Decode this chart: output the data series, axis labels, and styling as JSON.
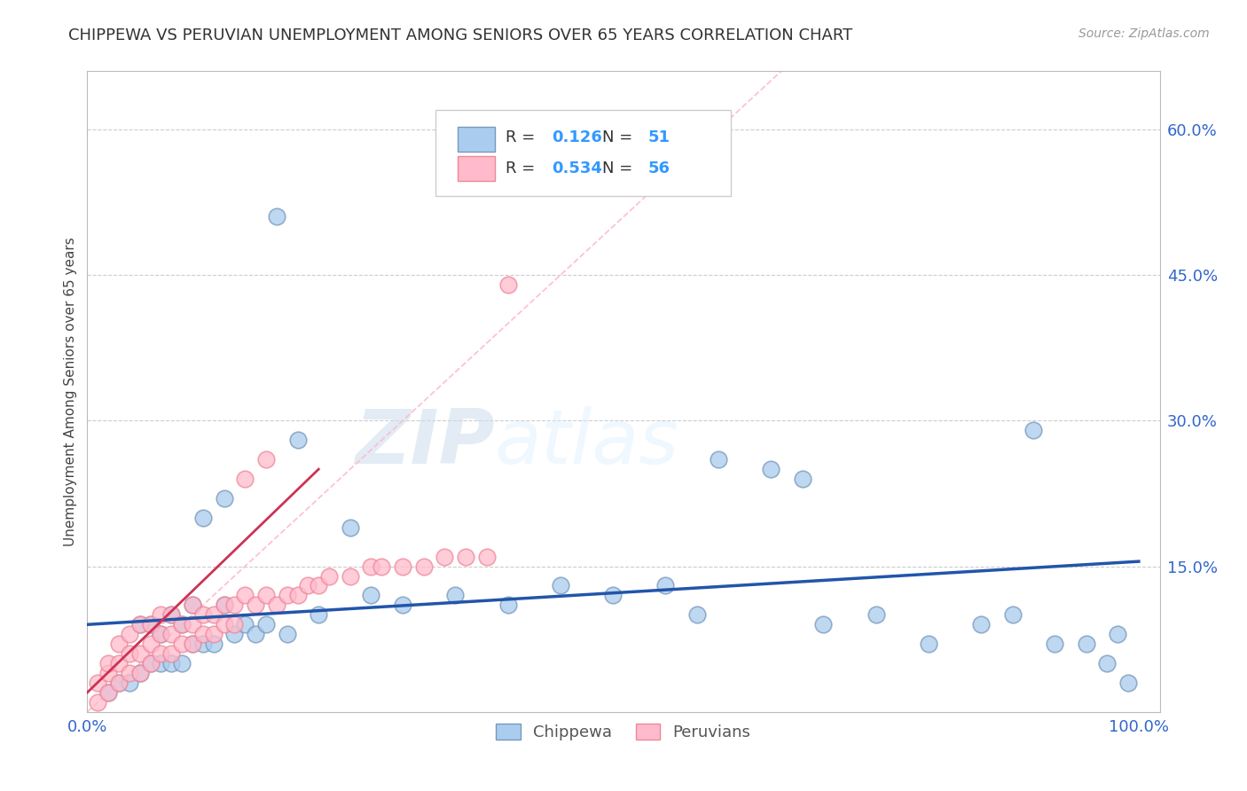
{
  "title": "CHIPPEWA VS PERUVIAN UNEMPLOYMENT AMONG SENIORS OVER 65 YEARS CORRELATION CHART",
  "source": "Source: ZipAtlas.com",
  "ylabel": "Unemployment Among Seniors over 65 years",
  "ytick_values": [
    0.0,
    0.15,
    0.3,
    0.45,
    0.6
  ],
  "ytick_labels": [
    "",
    "15.0%",
    "30.0%",
    "45.0%",
    "60.0%"
  ],
  "xlim": [
    0.0,
    1.0
  ],
  "ylim": [
    0.0,
    0.65
  ],
  "legend_R_blue": "0.126",
  "legend_N_blue": "51",
  "legend_R_pink": "0.534",
  "legend_N_pink": "56",
  "chippewa_face": "#AACCEE",
  "chippewa_edge": "#7799BB",
  "peruvian_face": "#FFBBCC",
  "peruvian_edge": "#EE8899",
  "trend_blue": "#2255AA",
  "trend_pink": "#CC3355",
  "diag_color": "#FFBBCC",
  "watermark_zip": "ZIP",
  "watermark_atlas": "atlas",
  "chippewa_x": [
    0.02,
    0.03,
    0.04,
    0.05,
    0.05,
    0.06,
    0.06,
    0.07,
    0.07,
    0.08,
    0.08,
    0.09,
    0.09,
    0.1,
    0.1,
    0.11,
    0.11,
    0.12,
    0.13,
    0.13,
    0.14,
    0.15,
    0.16,
    0.17,
    0.18,
    0.19,
    0.2,
    0.22,
    0.25,
    0.27,
    0.3,
    0.35,
    0.4,
    0.45,
    0.5,
    0.55,
    0.58,
    0.6,
    0.65,
    0.68,
    0.7,
    0.75,
    0.8,
    0.85,
    0.88,
    0.9,
    0.92,
    0.95,
    0.97,
    0.98,
    0.99
  ],
  "chippewa_y": [
    0.02,
    0.03,
    0.03,
    0.04,
    0.09,
    0.05,
    0.09,
    0.05,
    0.08,
    0.05,
    0.1,
    0.05,
    0.09,
    0.07,
    0.11,
    0.07,
    0.2,
    0.07,
    0.11,
    0.22,
    0.08,
    0.09,
    0.08,
    0.09,
    0.51,
    0.08,
    0.28,
    0.1,
    0.19,
    0.12,
    0.11,
    0.12,
    0.11,
    0.13,
    0.12,
    0.13,
    0.1,
    0.26,
    0.25,
    0.24,
    0.09,
    0.1,
    0.07,
    0.09,
    0.1,
    0.29,
    0.07,
    0.07,
    0.05,
    0.08,
    0.03
  ],
  "peruvian_x": [
    0.01,
    0.01,
    0.02,
    0.02,
    0.02,
    0.03,
    0.03,
    0.03,
    0.04,
    0.04,
    0.04,
    0.05,
    0.05,
    0.05,
    0.06,
    0.06,
    0.06,
    0.07,
    0.07,
    0.07,
    0.08,
    0.08,
    0.08,
    0.09,
    0.09,
    0.1,
    0.1,
    0.1,
    0.11,
    0.11,
    0.12,
    0.12,
    0.13,
    0.13,
    0.14,
    0.14,
    0.15,
    0.15,
    0.16,
    0.17,
    0.17,
    0.18,
    0.19,
    0.2,
    0.21,
    0.22,
    0.23,
    0.25,
    0.27,
    0.28,
    0.3,
    0.32,
    0.34,
    0.36,
    0.38,
    0.4
  ],
  "peruvian_y": [
    0.01,
    0.03,
    0.02,
    0.04,
    0.05,
    0.03,
    0.05,
    0.07,
    0.04,
    0.06,
    0.08,
    0.04,
    0.06,
    0.09,
    0.05,
    0.07,
    0.09,
    0.06,
    0.08,
    0.1,
    0.06,
    0.08,
    0.1,
    0.07,
    0.09,
    0.07,
    0.09,
    0.11,
    0.08,
    0.1,
    0.08,
    0.1,
    0.09,
    0.11,
    0.09,
    0.11,
    0.12,
    0.24,
    0.11,
    0.12,
    0.26,
    0.11,
    0.12,
    0.12,
    0.13,
    0.13,
    0.14,
    0.14,
    0.15,
    0.15,
    0.15,
    0.15,
    0.16,
    0.16,
    0.16,
    0.44
  ],
  "blue_trend_x": [
    0.0,
    1.0
  ],
  "blue_trend_y": [
    0.09,
    0.155
  ],
  "pink_trend_x": [
    0.0,
    0.22
  ],
  "pink_trend_y": [
    0.02,
    0.25
  ]
}
